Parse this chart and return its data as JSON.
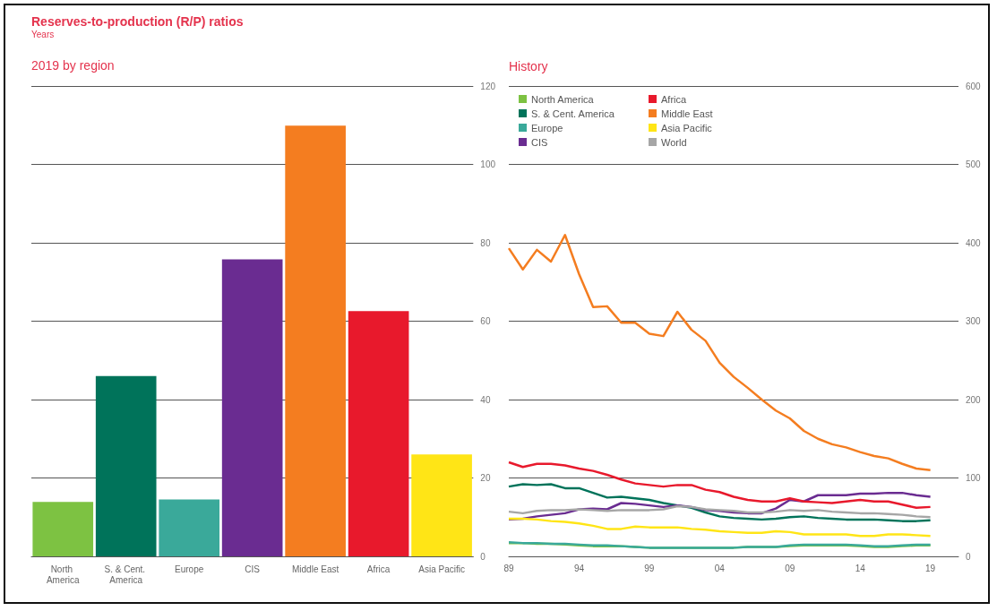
{
  "chart_data": [
    {
      "type": "bar",
      "title": "Reserves-to-production (R/P) ratios",
      "subtitle": "Years",
      "annotations": [
        "2019 by region"
      ],
      "categories": [
        "North America",
        "S. & Cent. America",
        "Europe",
        "CIS",
        "Middle East",
        "Africa",
        "Asia Pacific"
      ],
      "values": [
        13.9,
        46.0,
        14.5,
        75.8,
        109.9,
        62.6,
        26.0
      ],
      "colors": [
        "#7dc242",
        "#00735a",
        "#3aa99a",
        "#6a2c91",
        "#f47d20",
        "#e8192c",
        "#ffe516"
      ],
      "ylim": [
        0,
        120
      ],
      "yticks": [
        0,
        20,
        40,
        60,
        80,
        100,
        120
      ],
      "grid": "y"
    },
    {
      "type": "line",
      "title": "History",
      "legend": "top left",
      "grid": "y",
      "x": [
        1989,
        1990,
        1991,
        1992,
        1993,
        1994,
        1995,
        1996,
        1997,
        1998,
        1999,
        2000,
        2001,
        2002,
        2003,
        2004,
        2005,
        2006,
        2007,
        2008,
        2009,
        2010,
        2011,
        2012,
        2013,
        2014,
        2015,
        2016,
        2017,
        2018,
        2019
      ],
      "xlim": [
        1989,
        2021
      ],
      "xticks": [
        {
          "value": 1989,
          "label": "89"
        },
        {
          "value": 1994,
          "label": "94"
        },
        {
          "value": 1999,
          "label": "99"
        },
        {
          "value": 2004,
          "label": "04"
        },
        {
          "value": 2009,
          "label": "09"
        },
        {
          "value": 2014,
          "label": "14"
        },
        {
          "value": 2019,
          "label": "19"
        }
      ],
      "ylim": [
        0,
        600
      ],
      "yticks": [
        0,
        100,
        200,
        300,
        400,
        500,
        600
      ],
      "series": [
        {
          "name": "North America",
          "color": "#7dc242",
          "values": [
            17,
            17,
            16,
            16,
            15,
            14,
            13,
            13,
            13,
            12,
            11,
            11,
            11,
            11,
            11,
            11,
            11,
            12,
            12,
            12,
            13,
            14,
            14,
            14,
            14,
            13,
            12,
            12,
            13,
            14,
            14
          ]
        },
        {
          "name": "S. & Cent. America",
          "color": "#00735a",
          "values": [
            89,
            92,
            91,
            92,
            87,
            87,
            81,
            75,
            76,
            74,
            72,
            68,
            65,
            62,
            56,
            51,
            49,
            48,
            47,
            48,
            50,
            51,
            49,
            48,
            47,
            47,
            47,
            46,
            45,
            45,
            46
          ]
        },
        {
          "name": "Europe",
          "color": "#3aa99a",
          "values": [
            18,
            17,
            17,
            16,
            16,
            15,
            14,
            14,
            13,
            12,
            11,
            11,
            11,
            11,
            11,
            11,
            11,
            12,
            12,
            12,
            14,
            15,
            15,
            15,
            15,
            14,
            13,
            13,
            14,
            15,
            15
          ]
        },
        {
          "name": "CIS",
          "color": "#6a2c91",
          "values": [
            47,
            48,
            51,
            53,
            55,
            60,
            61,
            60,
            68,
            67,
            65,
            63,
            65,
            63,
            59,
            58,
            56,
            55,
            55,
            61,
            72,
            70,
            78,
            78,
            78,
            80,
            80,
            81,
            81,
            78,
            76
          ]
        },
        {
          "name": "Africa",
          "color": "#e8192c",
          "values": [
            120,
            114,
            118,
            118,
            116,
            112,
            109,
            104,
            98,
            93,
            91,
            89,
            91,
            91,
            85,
            82,
            76,
            72,
            70,
            70,
            74,
            70,
            69,
            68,
            70,
            72,
            70,
            70,
            66,
            62,
            63
          ]
        },
        {
          "name": "Middle East",
          "color": "#f47d20",
          "values": [
            393,
            366,
            391,
            376,
            410,
            360,
            318,
            319,
            298,
            298,
            284,
            281,
            312,
            289,
            275,
            247,
            229,
            215,
            200,
            186,
            176,
            160,
            150,
            143,
            139,
            133,
            128,
            125,
            118,
            112,
            110
          ]
        },
        {
          "name": "Asia Pacific",
          "color": "#ffe516",
          "values": [
            48,
            48,
            47,
            45,
            44,
            42,
            39,
            35,
            35,
            38,
            37,
            37,
            37,
            35,
            34,
            32,
            31,
            30,
            30,
            32,
            31,
            28,
            28,
            28,
            28,
            26,
            26,
            28,
            28,
            27,
            26
          ]
        },
        {
          "name": "World",
          "color": "#a6a6a6",
          "values": [
            57,
            55,
            58,
            59,
            59,
            60,
            59,
            58,
            59,
            59,
            59,
            60,
            64,
            63,
            60,
            59,
            58,
            56,
            56,
            57,
            59,
            58,
            59,
            57,
            56,
            55,
            55,
            54,
            53,
            51,
            50
          ]
        }
      ]
    }
  ]
}
